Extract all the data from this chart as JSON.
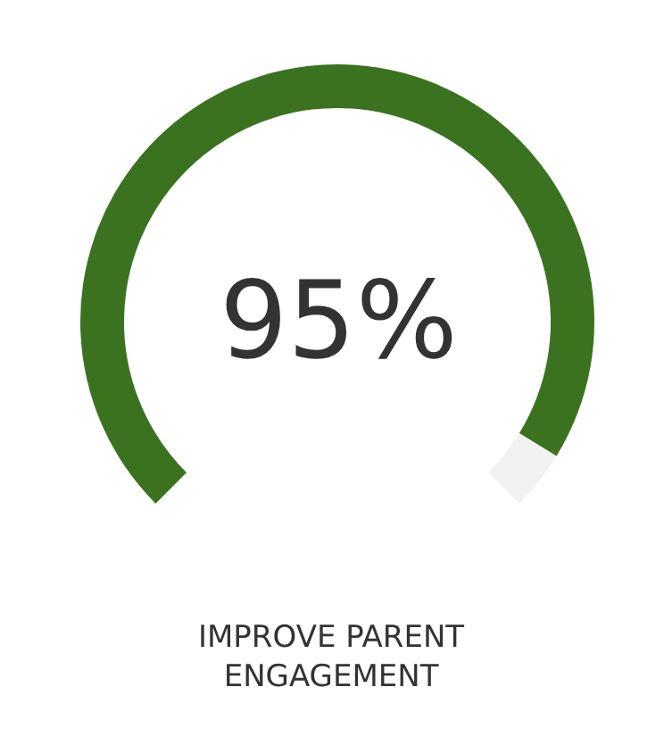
{
  "chart_data": {
    "type": "donut",
    "title": "IMPROVE PARENT ENGAGEMENT",
    "categories": [
      null,
      null
    ],
    "values": [
      95,
      5
    ],
    "colors": [
      "#3b7220",
      "#f2f2f2"
    ],
    "value_labels": [
      "95%",
      null
    ],
    "legend": false
  }
}
